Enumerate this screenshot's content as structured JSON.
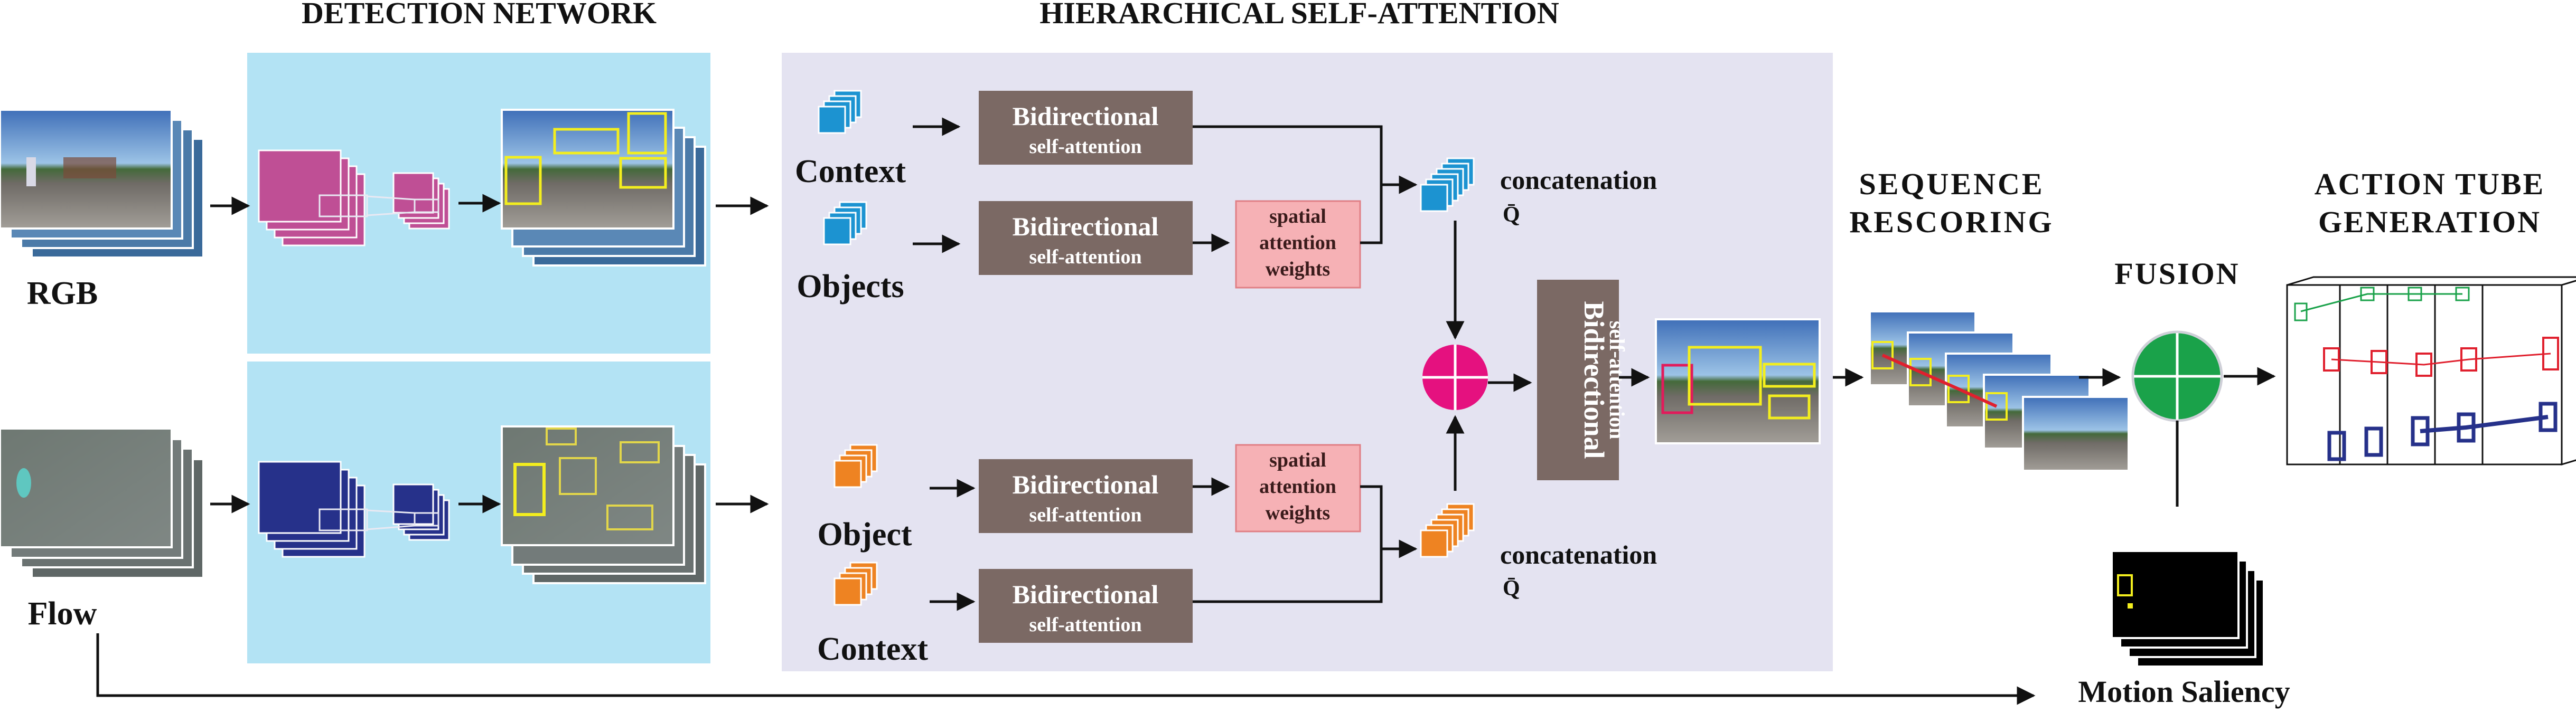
{
  "headers": {
    "detection_network": "DETECTION NETWORK",
    "hierarchical_self_attention": "HIERARCHICAL SELF-ATTENTION",
    "sequence_rescoring_line1": "SEQUENCE",
    "sequence_rescoring_line2": "RESCORING",
    "fusion": "FUSION",
    "action_tube_line1": "ACTION TUBE",
    "action_tube_line2": "GENERATION"
  },
  "inputs": {
    "rgb": "RGB",
    "flow": "Flow"
  },
  "streams": {
    "rgb": {
      "context": "Context",
      "objects": "Objects"
    },
    "flow": {
      "object": "Object",
      "context": "Context"
    }
  },
  "bidirectional": {
    "title": "Bidirectional",
    "subtitle": "self-attention"
  },
  "spatial_weights": {
    "line1": "spatial",
    "line2": "attention",
    "line3": "weights"
  },
  "concatenation": {
    "label": "concatenation",
    "symbol": "Q̄"
  },
  "motion_saliency": "Motion Saliency",
  "colors": {
    "detection_bg": "#b3e3f4",
    "attention_bg": "#e4e3f1",
    "bidir_box": "#7b6964",
    "spatial_box": "#f6b1b5",
    "rgb_feature": "#bf4f95",
    "flow_feature": "#26318a",
    "rgb_cube": "#1c93d1",
    "flow_cube": "#ee8322",
    "combine_node": "#e5117f",
    "fusion_node": "#1aa24a",
    "detection_box": "#f3ee1e"
  }
}
